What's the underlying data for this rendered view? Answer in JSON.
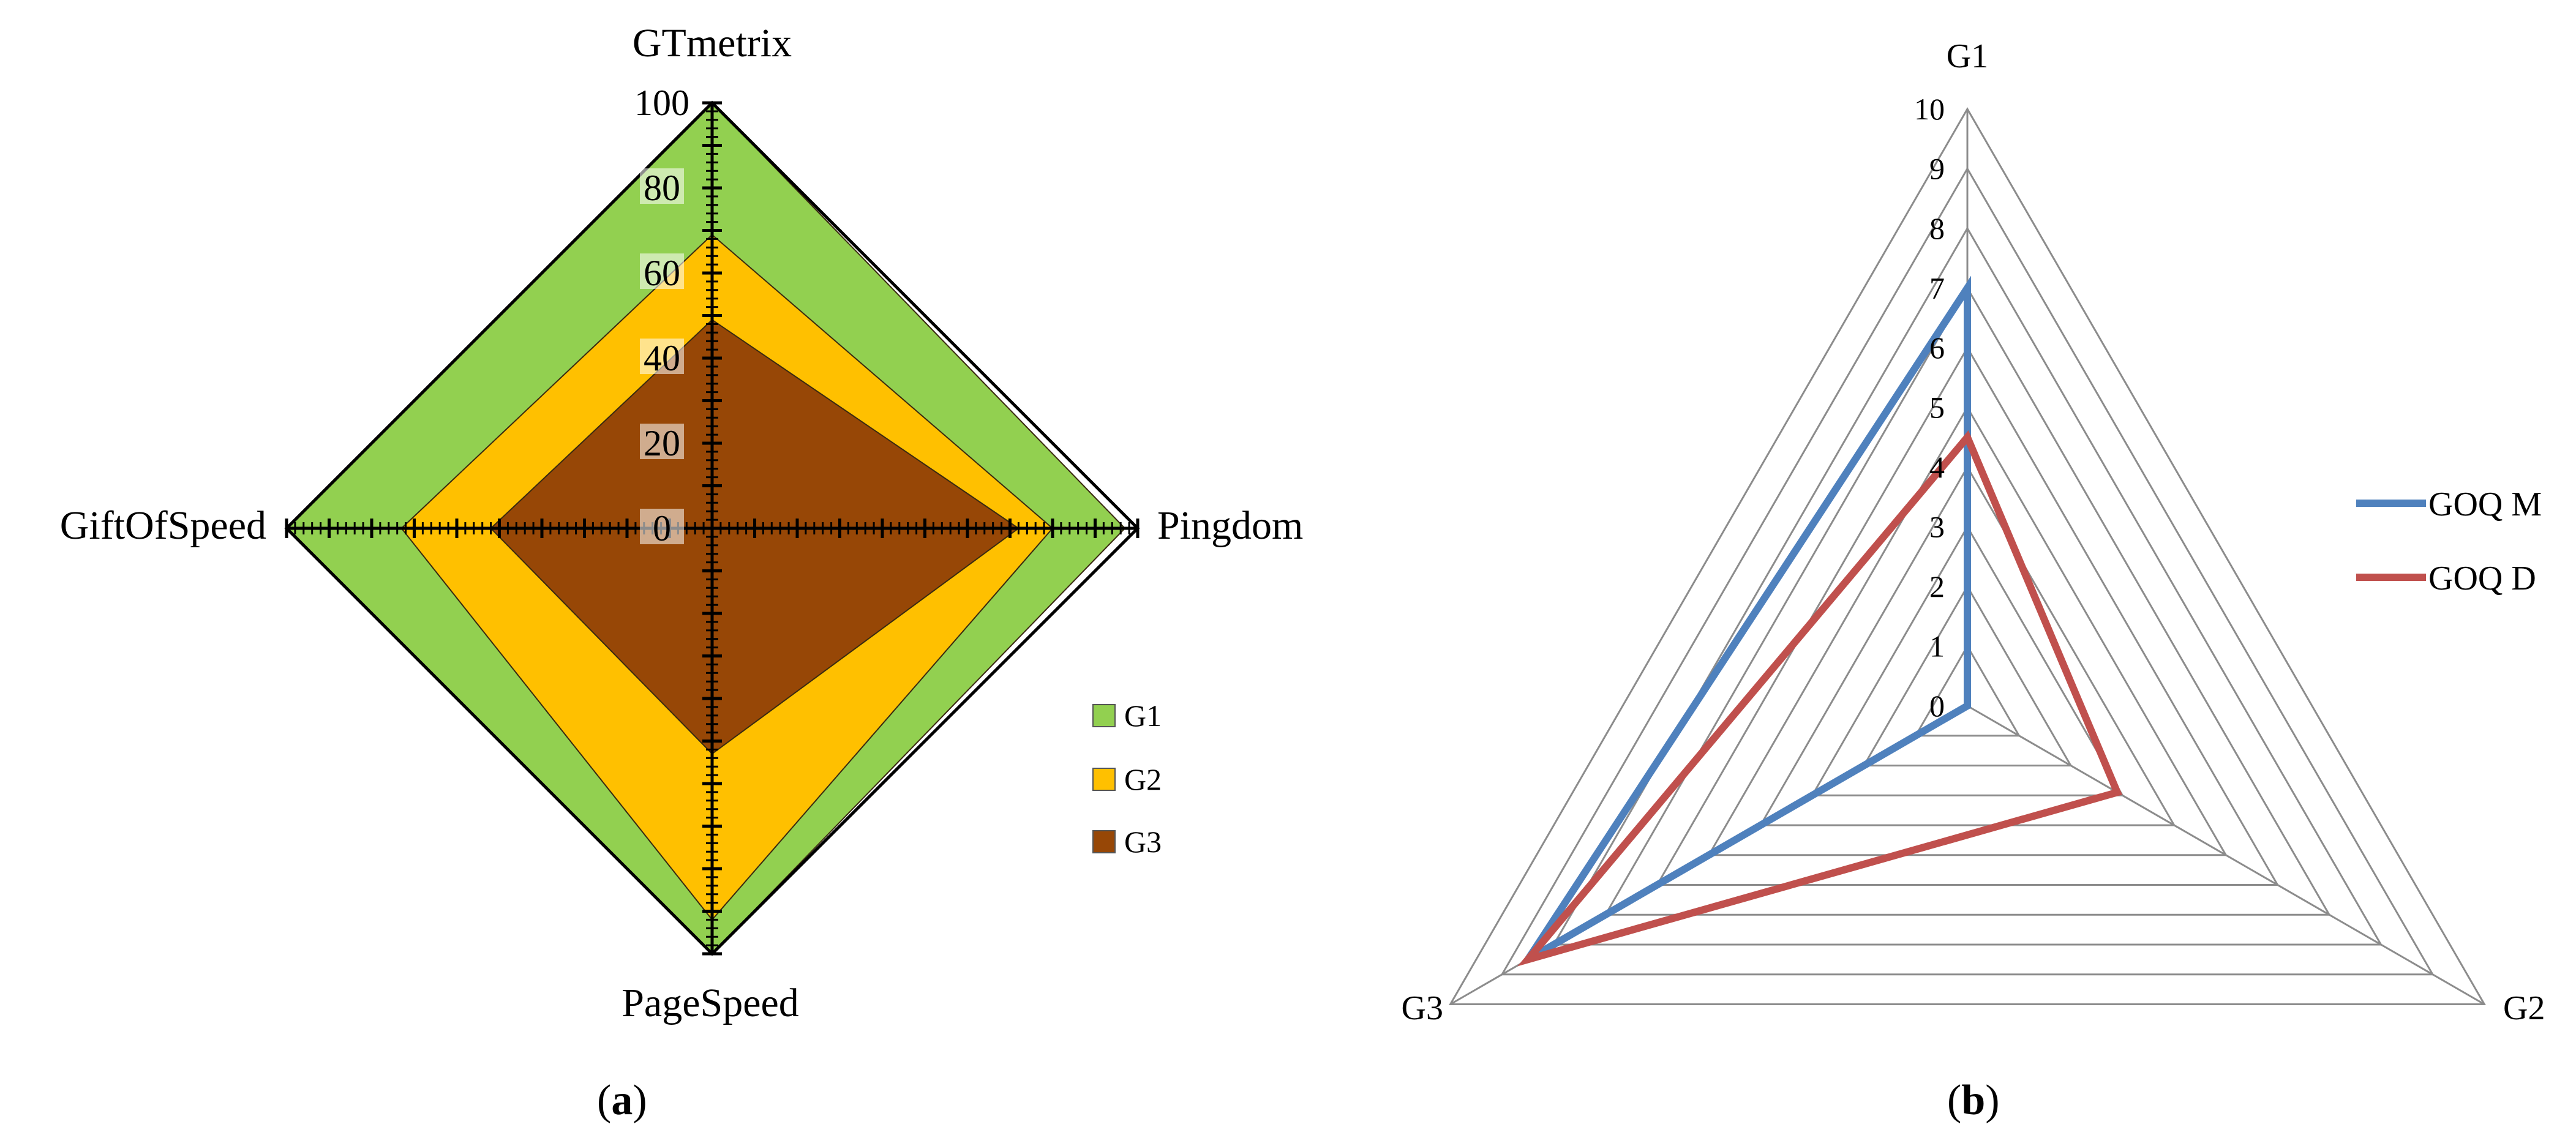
{
  "chart_data": [
    {
      "type": "radar",
      "panel_label": "a",
      "axes": [
        "GTmetrix",
        "Pingdom",
        "PageSpeed",
        "GiftOfSpeed"
      ],
      "rlim": [
        0,
        100
      ],
      "ticks": [
        "0",
        "20",
        "40",
        "60",
        "80",
        "100"
      ],
      "series": [
        {
          "name": "G1",
          "values": [
            100,
            97,
            100,
            100
          ],
          "color": "#92d050"
        },
        {
          "name": "G2",
          "values": [
            69,
            80,
            92,
            73
          ],
          "color": "#ffc000"
        },
        {
          "name": "G3",
          "values": [
            49,
            72,
            53,
            52
          ],
          "color": "#974706"
        }
      ],
      "legend_position": "right",
      "filled": true
    },
    {
      "type": "radar",
      "panel_label": "b",
      "axes": [
        "G1",
        "G2",
        "G3"
      ],
      "rlim": [
        0,
        10
      ],
      "ticks": [
        "0",
        "1",
        "2",
        "3",
        "4",
        "5",
        "6",
        "7",
        "8",
        "9",
        "10"
      ],
      "series": [
        {
          "name": "GOQ M",
          "values": [
            7,
            0,
            8.5
          ],
          "color": "#4f81bd"
        },
        {
          "name": "GOQ D",
          "values": [
            4.5,
            2.9,
            8.5
          ],
          "color": "#c0504d"
        }
      ],
      "legend_position": "right",
      "grid": true,
      "filled": false
    }
  ]
}
